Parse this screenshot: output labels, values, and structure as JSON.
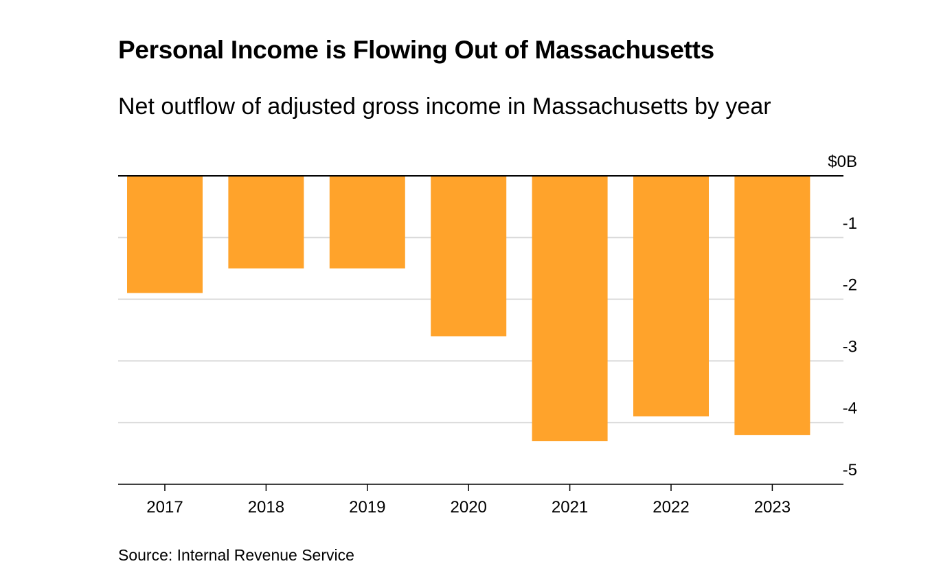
{
  "title": "Personal Income is Flowing Out of Massachusetts",
  "subtitle": "Net outflow of adjusted gross income in Massachusetts by year",
  "source": "Source: Internal Revenue Service",
  "colors": {
    "bar": "#ffa32b",
    "grid": "#d9d9d9",
    "axis": "#000000"
  },
  "chart_data": {
    "type": "bar",
    "title": "Personal Income is Flowing Out of Massachusetts",
    "subtitle": "Net outflow of adjusted gross income in Massachusetts by year",
    "xlabel": "",
    "ylabel": "",
    "categories": [
      "2017",
      "2018",
      "2019",
      "2020",
      "2021",
      "2022",
      "2023"
    ],
    "values": [
      -1.9,
      -1.5,
      -1.5,
      -2.6,
      -4.3,
      -3.9,
      -4.2
    ],
    "ylim": [
      -5,
      0
    ],
    "yticks": [
      0,
      -1,
      -2,
      -3,
      -4,
      -5
    ],
    "ytick_labels": [
      "$0B",
      "-1",
      "-2",
      "-3",
      "-4",
      "-5"
    ],
    "y_axis_side": "right",
    "grid": true,
    "legend": "none"
  }
}
